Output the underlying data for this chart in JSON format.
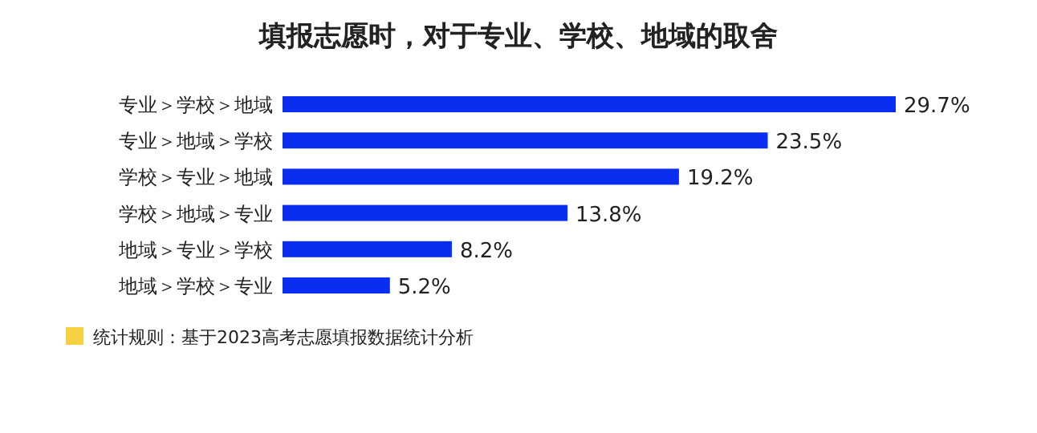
{
  "chart_data": {
    "type": "bar",
    "orientation": "horizontal",
    "title": "填报志愿时，对于专业、学校、地域的取舍",
    "categories": [
      "专业＞学校＞地域",
      "专业＞地域＞学校",
      "学校＞专业＞地域",
      "学校＞地域＞专业",
      "地域＞专业＞学校",
      "地域＞学校＞专业"
    ],
    "values": [
      29.7,
      23.5,
      19.2,
      13.8,
      8.2,
      5.2
    ],
    "value_labels": [
      "29.7%",
      "23.5%",
      "19.2%",
      "13.8%",
      "8.2%",
      "5.2%"
    ],
    "color": "#0a2ef0",
    "annotations": [
      "统计规则：基于2023高考志愿填报数据统计分析"
    ]
  }
}
